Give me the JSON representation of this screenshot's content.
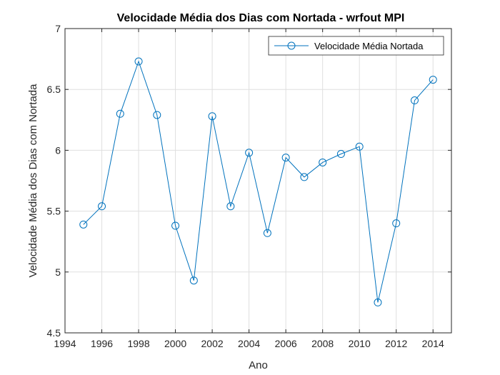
{
  "chart_data": {
    "type": "line",
    "title": "Velocidade Média dos Dias com Nortada - wrfout MPI",
    "xlabel": "Ano",
    "ylabel": "Velocidade Média dos Dias com Nortada",
    "xlim": [
      1994,
      2015
    ],
    "ylim": [
      4.5,
      7
    ],
    "xticks": [
      "1994",
      "1996",
      "1998",
      "2000",
      "2002",
      "2004",
      "2006",
      "2008",
      "2010",
      "2012",
      "2014"
    ],
    "yticks": [
      "4.5",
      "5",
      "5.5",
      "6",
      "6.5",
      "7"
    ],
    "grid": true,
    "legend_position": "top-right",
    "series": [
      {
        "name": "Velocidade Média Nortada",
        "color": "#0072BD",
        "marker": "circle",
        "x": [
          1995,
          1996,
          1997,
          1998,
          1999,
          2000,
          2001,
          2002,
          2003,
          2004,
          2005,
          2006,
          2007,
          2008,
          2009,
          2010,
          2011,
          2012,
          2013,
          2014
        ],
        "y": [
          5.39,
          5.54,
          6.3,
          6.73,
          6.29,
          5.38,
          4.93,
          6.28,
          5.54,
          5.98,
          5.32,
          5.94,
          5.78,
          5.9,
          5.97,
          6.03,
          4.75,
          5.4,
          6.41,
          6.58
        ]
      }
    ]
  }
}
